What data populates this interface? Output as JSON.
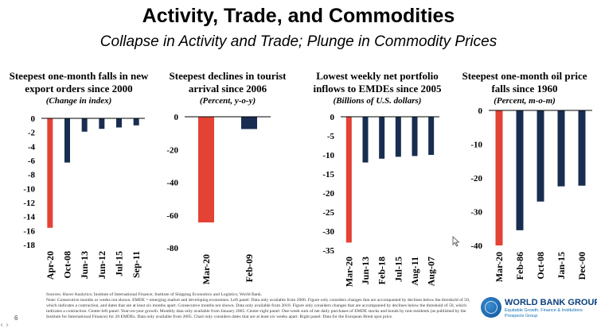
{
  "header": {
    "title": "Activity, Trade, and Commodities",
    "subtitle": "Collapse in Activity and Trade; Plunge in Commodity Prices"
  },
  "colors": {
    "highlight": "#e34234",
    "bar": "#182d50",
    "axis": "#000000"
  },
  "chart_data": [
    {
      "type": "bar",
      "title": "Steepest one-month falls in new export orders since 2000",
      "subtitle": "(Change in index)",
      "categories": [
        "Apr-20",
        "Oct-08",
        "Jun-13",
        "Jun-12",
        "Jul-15",
        "Sep-11"
      ],
      "values": [
        -15.6,
        -6.3,
        -1.9,
        -1.5,
        -1.3,
        -1.0
      ],
      "ylim": [
        -18,
        0
      ],
      "yticks": [
        0,
        -2,
        -4,
        -6,
        -8,
        -10,
        -12,
        -14,
        -16,
        -18
      ],
      "ytick_labels": [
        "0",
        "-2",
        "-4",
        "-6",
        "-8",
        "-10",
        "-12",
        "-14",
        "-16",
        "-18"
      ],
      "highlight_index": 0
    },
    {
      "type": "bar",
      "title": "Steepest declines in tourist arrival since 2006",
      "subtitle": "(Percent, y-o-y)",
      "categories": [
        "Mar-20",
        "Feb-09"
      ],
      "values": [
        -64.5,
        -7.5
      ],
      "ylim": [
        -80,
        0
      ],
      "yticks": [
        0,
        -20,
        -40,
        -60,
        -80
      ],
      "ytick_labels": [
        "0",
        "-20",
        "-40",
        "-60",
        "-80"
      ],
      "highlight_index": 0
    },
    {
      "type": "bar",
      "title": "Lowest weekly net portfolio inflows to EMDEs since 2005",
      "subtitle": "(Billions of U.S. dollars)",
      "categories": [
        "Mar-20",
        "Jun-13",
        "Feb-18",
        "Jul-15",
        "Aug-11",
        "Aug-07"
      ],
      "values": [
        -33,
        -12,
        -11,
        -10.5,
        -10.3,
        -10
      ],
      "ylim": [
        -35,
        0
      ],
      "yticks": [
        0,
        -5,
        -10,
        -15,
        -20,
        -25,
        -30,
        -35
      ],
      "ytick_labels": [
        "0",
        "-5",
        "-10",
        "-15",
        "-20",
        "-25",
        "-30",
        "-35"
      ],
      "highlight_index": 0
    },
    {
      "type": "bar",
      "title": "Steepest one-month oil price falls since 1960",
      "subtitle": "(Percent, m-o-m)",
      "categories": [
        "Mar-20",
        "Feb-86",
        "Oct-08",
        "Jan-15",
        "Dec-00"
      ],
      "values": [
        -40,
        -35.5,
        -27,
        -22.5,
        -22.3
      ],
      "ylim": [
        -40,
        0
      ],
      "yticks": [
        0,
        -10,
        -20,
        -30,
        -40
      ],
      "ytick_labels": [
        "0",
        "-10",
        "-20",
        "-30",
        "-40"
      ],
      "highlight_index": 0
    }
  ],
  "footer": {
    "source": "Sources: Haver Analytics; Institute of International Finance; Institute of Shipping Economics and Logistics; World Bank.",
    "note": "Note: Consecutive months or weeks not shown. EMDE = emerging market and developing economies. Left panel: Data only available from 2000. Figure only considers changes that are accompanied by declines below the threshold of 50, which indicates a contraction, and dates that are at least six months apart. Consecutive months not shown. Data only available from 2010. Figure only considers changes that are accompanied by declines below the threshold of 50, which indicates a contraction. Center-left panel: Year-on-year growth. Monthly data only available from January 2005. Center-right panel: One-week sum of net daily purchases of EMDE stocks and bonds by non-residents (as published by the Institute for International Finance) for 20 EMDEs. Data only available from 2005. Chart only considers dates that are at least six weeks apart. Right panel: Data for the European Brent spot price.",
    "page_number": "6",
    "nav": "‹ ›",
    "logo_name": "WORLD BANK GROUP",
    "logo_tagline_1": "Equitable Growth, Finance & Institutions",
    "logo_tagline_2": "Prospects Group"
  }
}
